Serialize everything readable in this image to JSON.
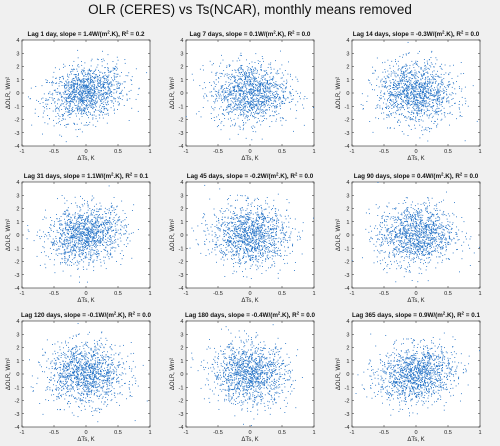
{
  "figure": {
    "title": "OLR (CERES) vs Ts(NCAR), monthly means removed"
  },
  "chart_data": {
    "type": "scatter",
    "layout": "3x3 grid",
    "point_color": "#1f6fc5",
    "xlabel": "ΔTs, K",
    "ylabel": "ΔOLR, Wm²",
    "xlim": [
      -1,
      1
    ],
    "ylim": [
      -4,
      4
    ],
    "xticks": [
      -1,
      -0.5,
      0,
      0.5,
      1
    ],
    "yticks": [
      -4,
      -3,
      -2,
      -1,
      0,
      1,
      2,
      3,
      4
    ],
    "grid": false,
    "panels": [
      {
        "title_prefix": "Lag 1 day, slope = 1.4W/(m",
        "title_suffix": ".K), R",
        "title_end": " = 0.2",
        "slope": 1.4,
        "r2": 0.2
      },
      {
        "title_prefix": "Lag 7 days, slope = 0.1W/(m",
        "title_suffix": ".K), R",
        "title_end": " = 0.0",
        "slope": 0.1,
        "r2": 0.0
      },
      {
        "title_prefix": "Lag 14 days, slope = -0.3W/(m",
        "title_suffix": ".K), R",
        "title_end": " = 0.0",
        "slope": -0.3,
        "r2": 0.0
      },
      {
        "title_prefix": "Lag 31 days, slope = 1.1W/(m",
        "title_suffix": ".K), R",
        "title_end": " = 0.1",
        "slope": 1.1,
        "r2": 0.1
      },
      {
        "title_prefix": "Lag 45 days, slope = -0.2W/(m",
        "title_suffix": ".K), R",
        "title_end": " = 0.0",
        "slope": -0.2,
        "r2": 0.0
      },
      {
        "title_prefix": "Lag 90 days, slope = 0.4W/(m",
        "title_suffix": ".K), R",
        "title_end": " = 0.0",
        "slope": 0.4,
        "r2": 0.0
      },
      {
        "title_prefix": "Lag 120 days, slope = -0.1W/(m",
        "title_suffix": ".K), R",
        "title_end": " = 0.0",
        "slope": -0.1,
        "r2": 0.0
      },
      {
        "title_prefix": "Lag 180 days, slope = -0.4W/(m",
        "title_suffix": ".K), R",
        "title_end": " = 0.0",
        "slope": -0.4,
        "r2": 0.0
      },
      {
        "title_prefix": "Lag 365 days, slope = 0.9W/(m",
        "title_suffix": ".K), R",
        "title_end": " = 0.1",
        "slope": 0.9,
        "r2": 0.1
      }
    ]
  }
}
